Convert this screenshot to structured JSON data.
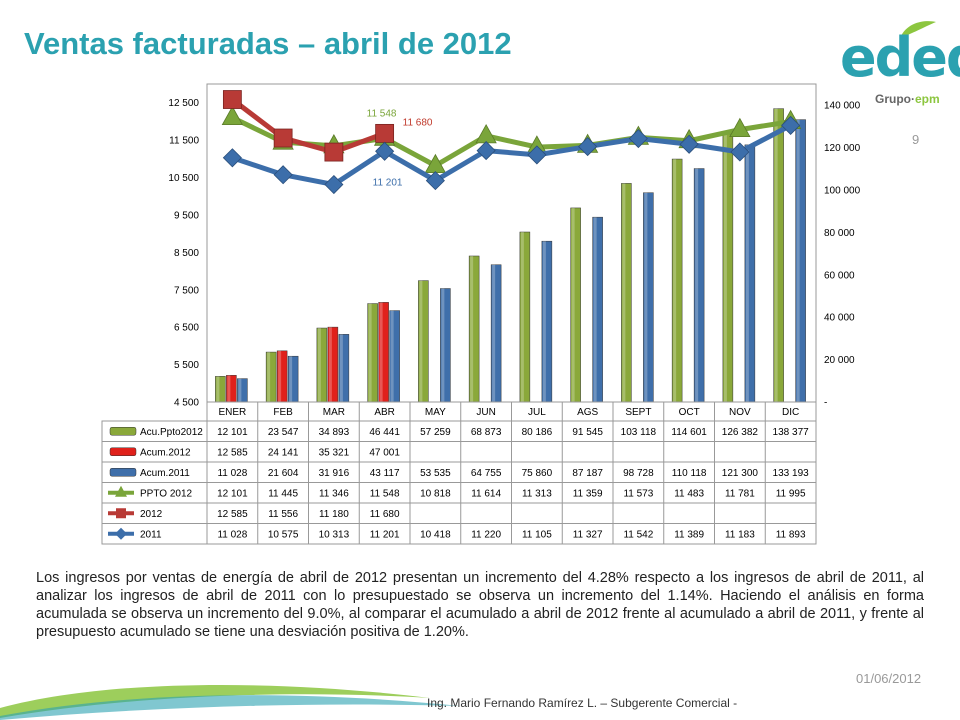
{
  "title": "Ventas facturadas – abril de 2012",
  "logo": {
    "text": "edeq",
    "group_prefix": "Grupo·",
    "group_brand": "epm"
  },
  "page_number": "9",
  "colors": {
    "title": "#2ba1b0",
    "ppto_bar": "#8aa83a",
    "acum2012_bar": "#e0211b",
    "acum2011_bar": "#3f6faa",
    "ppto_line": "#7aa53a",
    "line2012": "#b83a36",
    "line2011": "#3c6eaa"
  },
  "chart_data": {
    "type": "bar+line",
    "categories": [
      "ENER",
      "FEB",
      "MAR",
      "ABR",
      "MAY",
      "JUN",
      "JUL",
      "AGS",
      "SEPT",
      "OCT",
      "NOV",
      "DIC"
    ],
    "y_left": {
      "ticks": [
        "4 500",
        "5 500",
        "6 500",
        "7 500",
        "8 500",
        "9 500",
        "10 500",
        "11 500",
        "12 500"
      ],
      "range": [
        4500,
        13000
      ]
    },
    "y_right": {
      "ticks": [
        "-",
        "20 000",
        "40 000",
        "60 000",
        "80 000",
        "100 000",
        "120 000",
        "140 000"
      ],
      "range": [
        0,
        150000
      ]
    },
    "bar_series": [
      {
        "name": "Acu.Ppto2012",
        "axis": "right",
        "values": [
          12101,
          23547,
          34893,
          46441,
          57259,
          68873,
          80186,
          91545,
          103118,
          114601,
          126382,
          138377
        ]
      },
      {
        "name": "Acum.2012",
        "axis": "right",
        "values": [
          12585,
          24141,
          35321,
          47001,
          null,
          null,
          null,
          null,
          null,
          null,
          null,
          null
        ]
      },
      {
        "name": "Acum.2011",
        "axis": "right",
        "values": [
          11028,
          21604,
          31916,
          43117,
          53535,
          64755,
          75860,
          87187,
          98728,
          110118,
          121300,
          133193
        ]
      }
    ],
    "line_series": [
      {
        "name": "PPTO 2012",
        "axis": "left",
        "marker": "triangle",
        "values": [
          12101,
          11445,
          11346,
          11548,
          10818,
          11614,
          11313,
          11359,
          11573,
          11483,
          11781,
          11995
        ]
      },
      {
        "name": "2012",
        "axis": "left",
        "marker": "square",
        "values": [
          12585,
          11556,
          11180,
          11680,
          null,
          null,
          null,
          null,
          null,
          null,
          null,
          null
        ]
      },
      {
        "name": "2011",
        "axis": "left",
        "marker": "diamond",
        "values": [
          11028,
          10575,
          10313,
          11201,
          10418,
          11220,
          11105,
          11327,
          11542,
          11389,
          11183,
          11893
        ]
      }
    ],
    "annotations": [
      {
        "text": "11 548",
        "series": "PPTO 2012",
        "index": 3
      },
      {
        "text": "11 680",
        "series": "2012",
        "index": 3
      },
      {
        "text": "11 201",
        "series": "2011",
        "index": 3
      }
    ],
    "table": {
      "rows": [
        {
          "label": "Acu.Ppto2012",
          "cells": [
            "12 101",
            "23 547",
            "34 893",
            "46 441",
            "57 259",
            "68 873",
            "80 186",
            "91 545",
            "103 118",
            "114 601",
            "126 382",
            "138 377"
          ]
        },
        {
          "label": "Acum.2012",
          "cells": [
            "12 585",
            "24 141",
            "35 321",
            "47 001",
            "",
            "",
            "",
            "",
            "",
            "",
            "",
            ""
          ]
        },
        {
          "label": "Acum.2011",
          "cells": [
            "11 028",
            "21 604",
            "31 916",
            "43 117",
            "53 535",
            "64 755",
            "75 860",
            "87 187",
            "98 728",
            "110 118",
            "121 300",
            "133 193"
          ]
        },
        {
          "label": "PPTO 2012",
          "cells": [
            "12 101",
            "11 445",
            "11 346",
            "11 548",
            "10 818",
            "11 614",
            "11 313",
            "11 359",
            "11 573",
            "11 483",
            "11 781",
            "11 995"
          ]
        },
        {
          "label": "2012",
          "cells": [
            "12 585",
            "11 556",
            "11 180",
            "11 680",
            "",
            "",
            "",
            "",
            "",
            "",
            "",
            ""
          ]
        },
        {
          "label": "2011",
          "cells": [
            "11 028",
            "10 575",
            "10 313",
            "11 201",
            "10 418",
            "11 220",
            "11 105",
            "11 327",
            "11 542",
            "11 389",
            "11 183",
            "11 893"
          ]
        }
      ]
    }
  },
  "paragraph": "Los ingresos por ventas de energía de abril de 2012 presentan un incremento del 4.28% respecto a los ingresos de abril de 2011, al analizar los ingresos de abril de 2011 con lo presupuestado se observa un incremento del 1.14%. Haciendo el análisis en forma acumulada se observa un incremento del 9.0%, al comparar el acumulado a abril de 2012 frente al acumulado a abril de 2011, y frente al presupuesto acumulado se tiene una desviación positiva de 1.20%.",
  "date": "01/06/2012",
  "author": "Ing. Mario Fernando Ramírez L. – Subgerente Comercial -"
}
